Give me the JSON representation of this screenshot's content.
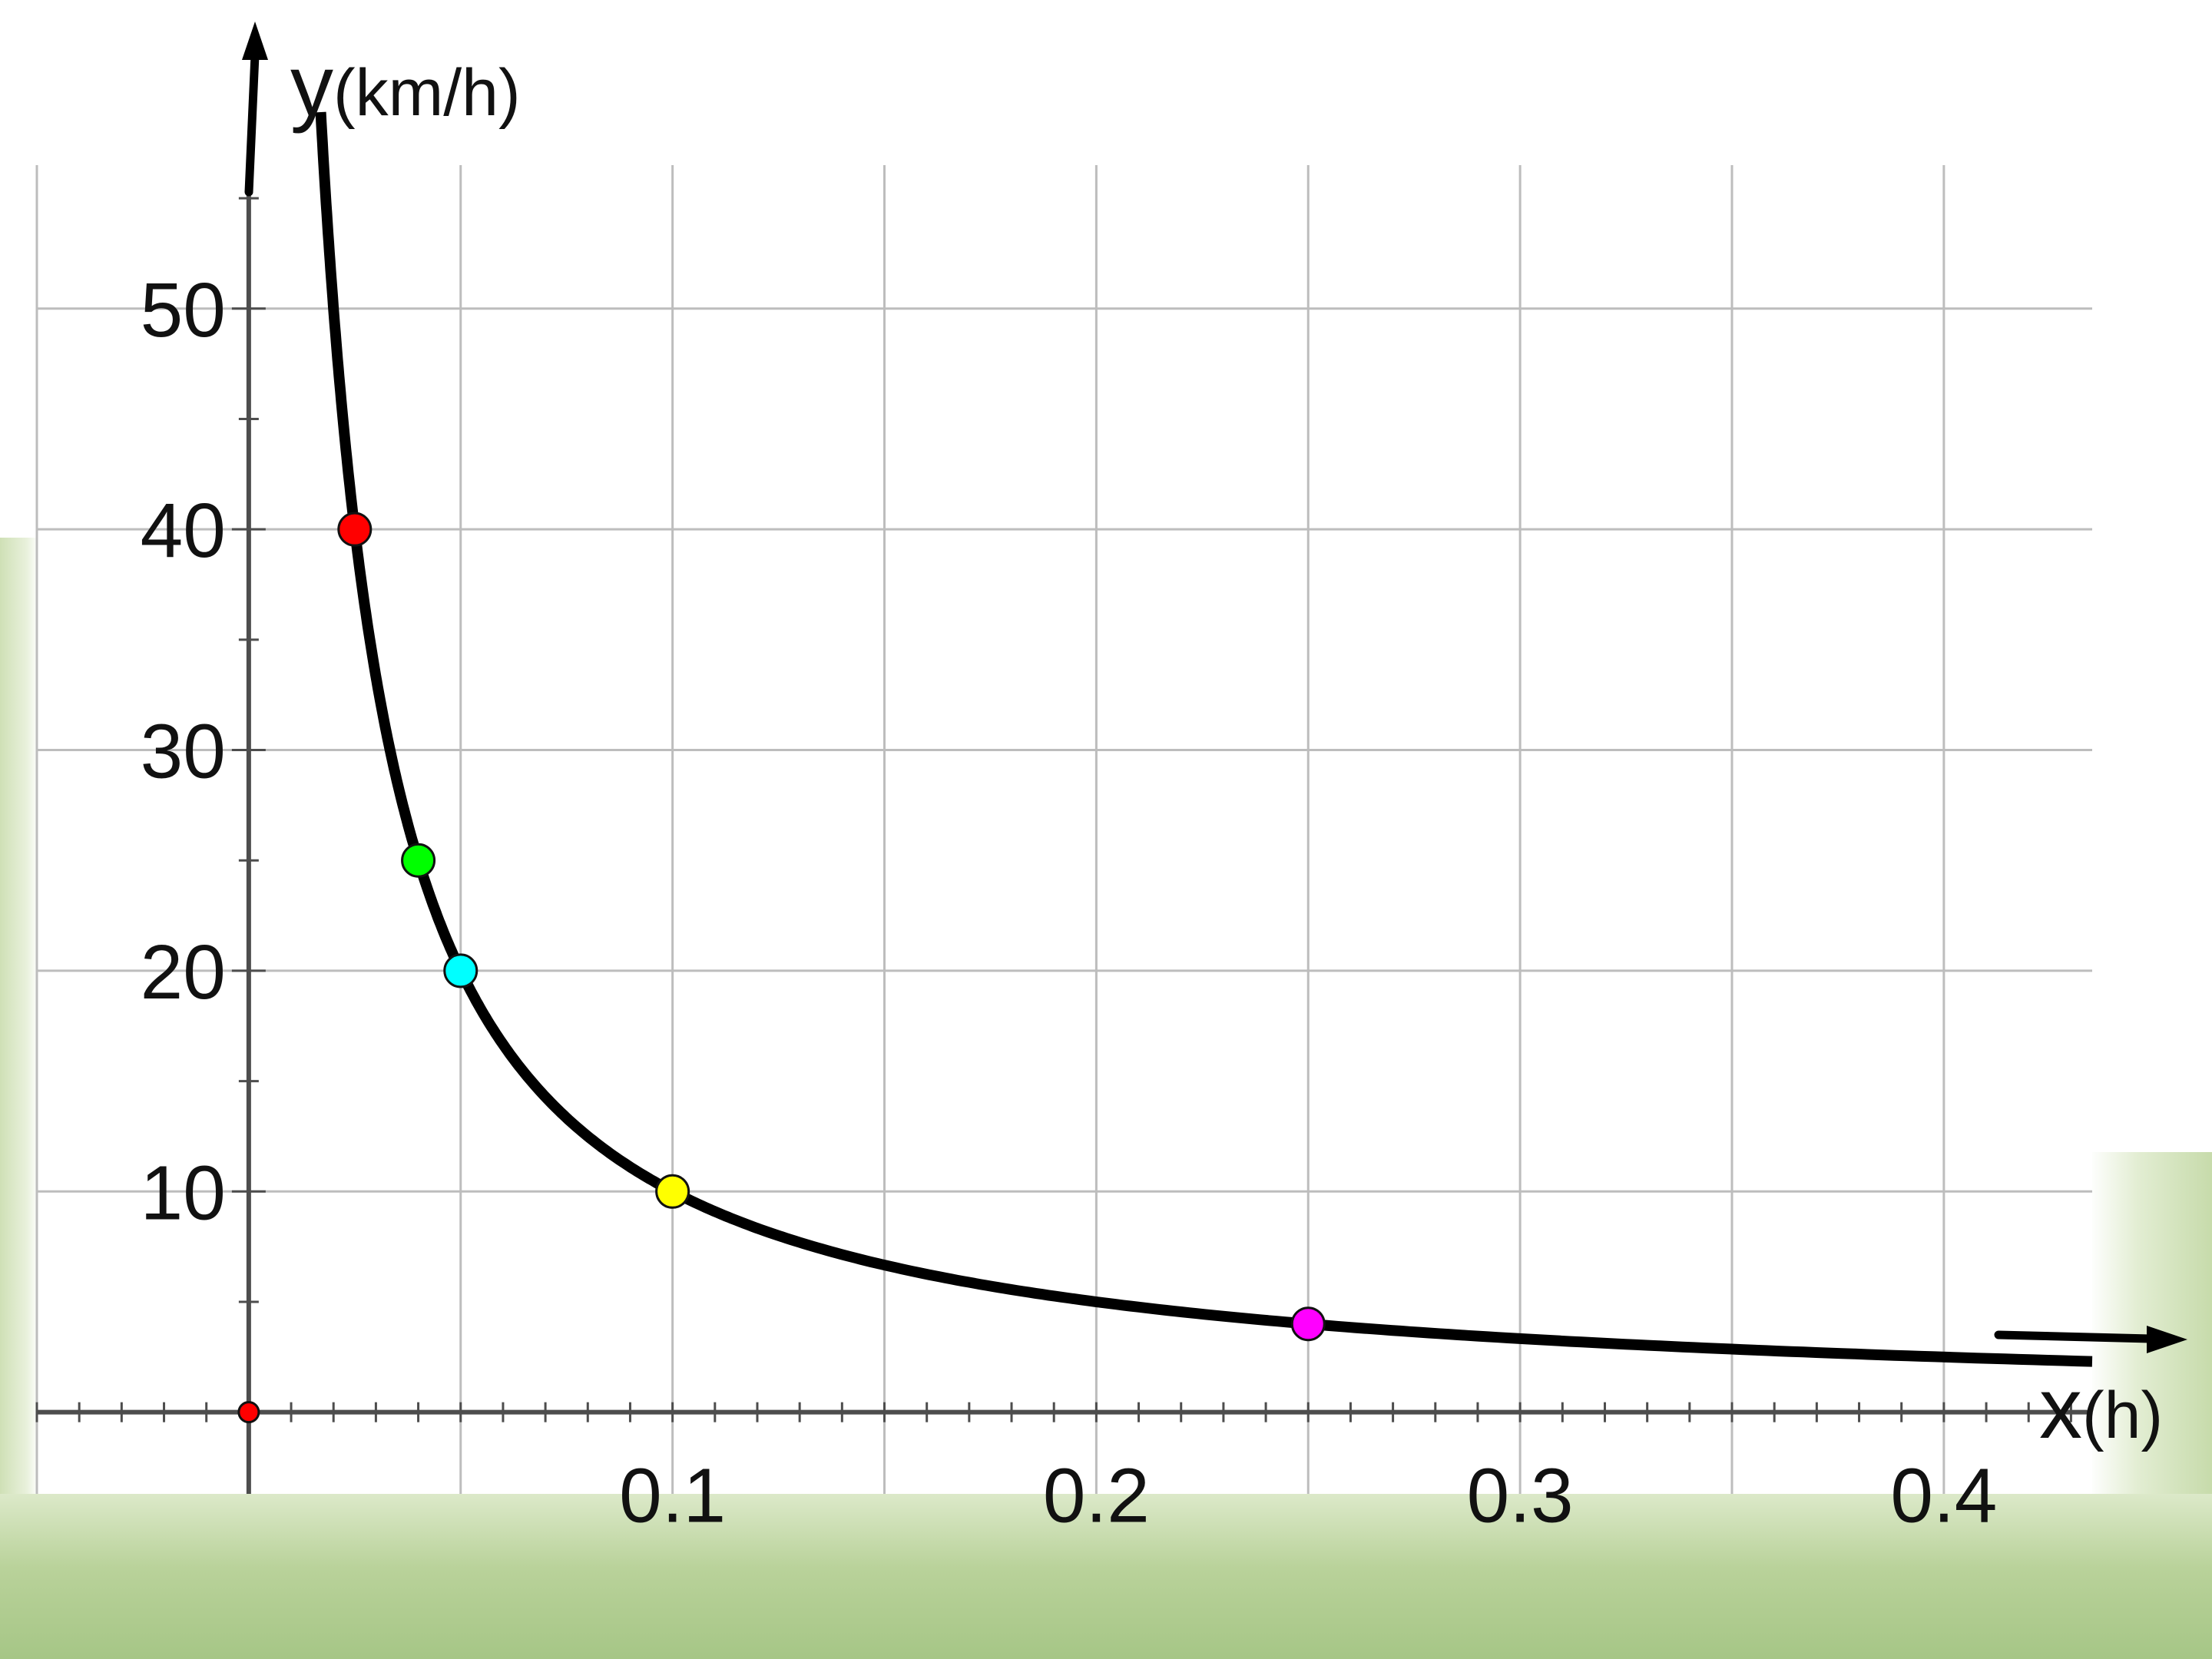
{
  "chart_data": {
    "type": "line",
    "function": "y = 1/x",
    "xlabel": {
      "symbol": "x",
      "unit": "(h)"
    },
    "ylabel": {
      "symbol": "y",
      "unit": "(km/h)"
    },
    "xlim": [
      -0.05,
      0.435
    ],
    "ylim": [
      -3.7,
      56.5
    ],
    "x_ticks": [
      0.1,
      0.2,
      0.3,
      0.4
    ],
    "x_tick_labels": [
      "0.1",
      "0.2",
      "0.3",
      "0.4"
    ],
    "y_ticks": [
      10,
      20,
      30,
      40,
      50
    ],
    "y_tick_labels": [
      "10",
      "20",
      "30",
      "40",
      "50"
    ],
    "x_grid_step": 0.05,
    "y_grid_step": 10,
    "x_minor_step": 0.01,
    "y_minor_step": 5,
    "grid": true,
    "curve_color": "#000000",
    "points": [
      {
        "x": 0,
        "y": 0,
        "color": "#ff0000"
      },
      {
        "x": 0.025,
        "y": 40,
        "color": "#ff0000"
      },
      {
        "x": 0.04,
        "y": 25,
        "color": "#00ff00"
      },
      {
        "x": 0.05,
        "y": 20,
        "color": "#00ffff"
      },
      {
        "x": 0.1,
        "y": 10,
        "color": "#ffff00"
      },
      {
        "x": 0.25,
        "y": 4,
        "color": "#ff00ff"
      }
    ]
  }
}
